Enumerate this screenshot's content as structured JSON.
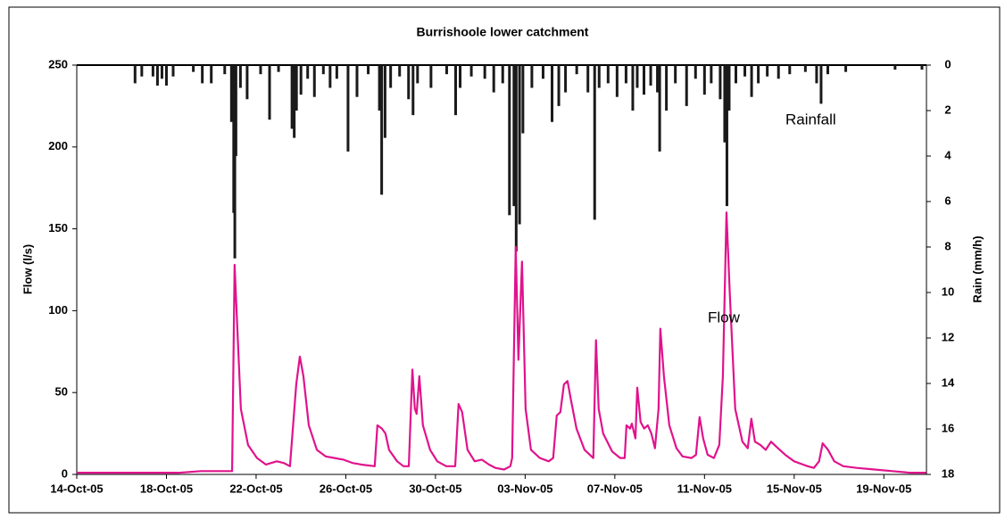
{
  "chart_data": {
    "type": "line",
    "title": "Burrishoole lower catchment",
    "y_label": "Flow (l/s)",
    "y2_label": "Rain (mm/h)",
    "xlim": [
      0,
      37.9
    ],
    "xticks": [
      {
        "value": 0,
        "label": "14-Oct-05"
      },
      {
        "value": 4,
        "label": "18-Oct-05"
      },
      {
        "value": 8,
        "label": "22-Oct-05"
      },
      {
        "value": 12,
        "label": "26-Oct-05"
      },
      {
        "value": 16,
        "label": "30-Oct-05"
      },
      {
        "value": 20,
        "label": "03-Nov-05"
      },
      {
        "value": 24,
        "label": "07-Nov-05"
      },
      {
        "value": 28,
        "label": "11-Nov-05"
      },
      {
        "value": 32,
        "label": "15-Nov-05"
      },
      {
        "value": 36,
        "label": "19-Nov-05"
      }
    ],
    "ylim": [
      0,
      250
    ],
    "yticks": [
      0,
      50,
      100,
      150,
      200,
      250
    ],
    "y2lim": [
      0,
      18
    ],
    "y2ticks": [
      0,
      2,
      4,
      6,
      8,
      10,
      12,
      14,
      16,
      18
    ],
    "y2_inverted": true,
    "grid": false,
    "series": [
      {
        "name": "Flow",
        "color": "#e0138c",
        "style": "line",
        "x": [
          0,
          2.55,
          4.54,
          5.53,
          6.93,
          7.04,
          7.16,
          7.32,
          7.64,
          8.04,
          8.44,
          8.92,
          9.23,
          9.51,
          9.79,
          9.95,
          10.11,
          10.35,
          10.71,
          11.1,
          11.5,
          11.9,
          12.3,
          12.7,
          13.29,
          13.41,
          13.61,
          13.77,
          13.93,
          14.29,
          14.57,
          14.81,
          14.97,
          15.08,
          15.16,
          15.28,
          15.44,
          15.76,
          16.08,
          16.48,
          16.88,
          17.03,
          17.19,
          17.43,
          17.75,
          18.07,
          18.39,
          18.67,
          19.06,
          19.34,
          19.42,
          19.58,
          19.7,
          19.86,
          20.02,
          20.26,
          20.66,
          21.05,
          21.25,
          21.41,
          21.57,
          21.73,
          21.89,
          22.05,
          22.29,
          22.65,
          23.04,
          23.16,
          23.28,
          23.48,
          23.88,
          24.24,
          24.44,
          24.52,
          24.68,
          24.76,
          24.92,
          25,
          25.15,
          25.31,
          25.47,
          25.63,
          25.79,
          25.95,
          26.03,
          26.19,
          26.43,
          26.75,
          27.02,
          27.42,
          27.62,
          27.78,
          27.94,
          28.14,
          28.42,
          28.66,
          28.82,
          28.98,
          29.13,
          29.37,
          29.69,
          29.93,
          30.09,
          30.25,
          30.49,
          30.73,
          30.97,
          31.2,
          31.6,
          32,
          32.4,
          32.6,
          32.88,
          33.11,
          33.27,
          33.51,
          33.79,
          34.19,
          34.79,
          35.58,
          36.38,
          37.17,
          37.89
        ],
        "values": [
          1,
          1,
          1,
          2,
          2,
          128,
          90,
          40,
          18,
          10,
          6,
          8,
          7,
          5,
          55,
          72,
          60,
          30,
          15,
          11,
          10,
          9,
          7,
          6,
          5,
          30,
          28,
          25,
          15,
          8,
          5,
          5,
          64,
          40,
          37,
          60,
          30,
          15,
          8,
          5,
          5,
          43,
          38,
          15,
          8,
          9,
          6,
          4,
          3,
          5,
          10,
          139,
          70,
          130,
          40,
          15,
          10,
          8,
          10,
          36,
          38,
          55,
          57,
          45,
          28,
          15,
          10,
          82,
          40,
          25,
          14,
          10,
          10,
          30,
          28,
          31,
          22,
          53,
          32,
          28,
          30,
          25,
          16,
          40,
          89,
          60,
          30,
          16,
          11,
          10,
          12,
          35,
          22,
          12,
          10,
          18,
          60,
          160,
          110,
          40,
          20,
          16,
          34,
          20,
          18,
          15,
          20,
          17,
          12,
          8,
          6,
          5,
          4,
          8,
          19,
          15,
          8,
          5,
          4,
          3,
          2,
          1,
          1
        ]
      },
      {
        "name": "Rainfall",
        "color": "#1a1a1a",
        "style": "bar",
        "axis": "y2",
        "x": [
          2.6,
          2.9,
          3.4,
          3.6,
          3.8,
          4.0,
          4.3,
          5.2,
          5.6,
          6.0,
          6.6,
          6.9,
          7.0,
          7.05,
          7.1,
          7.3,
          7.6,
          8.2,
          8.6,
          9.0,
          9.6,
          9.7,
          9.8,
          10.0,
          10.3,
          10.6,
          11.0,
          11.3,
          11.6,
          12.1,
          12.5,
          13.0,
          13.5,
          13.6,
          13.75,
          14.0,
          14.4,
          14.8,
          15.0,
          15.2,
          15.8,
          16.5,
          16.9,
          17.1,
          17.6,
          18.2,
          18.6,
          19.0,
          19.3,
          19.5,
          19.6,
          19.75,
          19.9,
          20.3,
          20.8,
          21.2,
          21.5,
          21.8,
          22.3,
          22.8,
          23.1,
          23.3,
          23.7,
          24.1,
          24.5,
          24.8,
          25.0,
          25.3,
          25.6,
          25.9,
          26.0,
          26.3,
          26.7,
          27.2,
          27.6,
          28.0,
          28.3,
          28.7,
          28.9,
          29.0,
          29.1,
          29.4,
          29.8,
          30.1,
          30.4,
          30.8,
          31.3,
          31.8,
          32.5,
          33.0,
          33.2,
          33.5,
          34.3,
          36.5,
          37.7
        ],
        "values": [
          0.8,
          0.5,
          0.5,
          0.9,
          0.6,
          0.9,
          0.5,
          0.3,
          0.8,
          0.8,
          0.4,
          2.5,
          6.5,
          8.5,
          4.0,
          1.0,
          1.5,
          0.4,
          2.4,
          0.3,
          2.8,
          3.2,
          2.0,
          1.3,
          0.6,
          1.4,
          0.4,
          1.0,
          0.6,
          3.8,
          1.4,
          0.4,
          2.0,
          5.7,
          3.2,
          1.0,
          0.5,
          1.5,
          2.2,
          0.8,
          1.0,
          0.4,
          2.2,
          1.0,
          0.5,
          0.6,
          1.2,
          0.8,
          6.6,
          6.2,
          8.2,
          7.0,
          3.0,
          1.0,
          0.6,
          2.5,
          1.8,
          1.2,
          0.4,
          1.2,
          6.8,
          1.0,
          0.8,
          1.4,
          0.8,
          2.0,
          1.0,
          1.3,
          0.9,
          1.2,
          3.8,
          2.0,
          0.8,
          1.8,
          0.6,
          1.3,
          0.8,
          1.5,
          3.4,
          6.2,
          2.0,
          0.8,
          0.5,
          1.4,
          0.8,
          0.5,
          0.6,
          0.4,
          0.3,
          0.8,
          1.7,
          0.4,
          0.3,
          0.2,
          0.2
        ]
      }
    ]
  }
}
